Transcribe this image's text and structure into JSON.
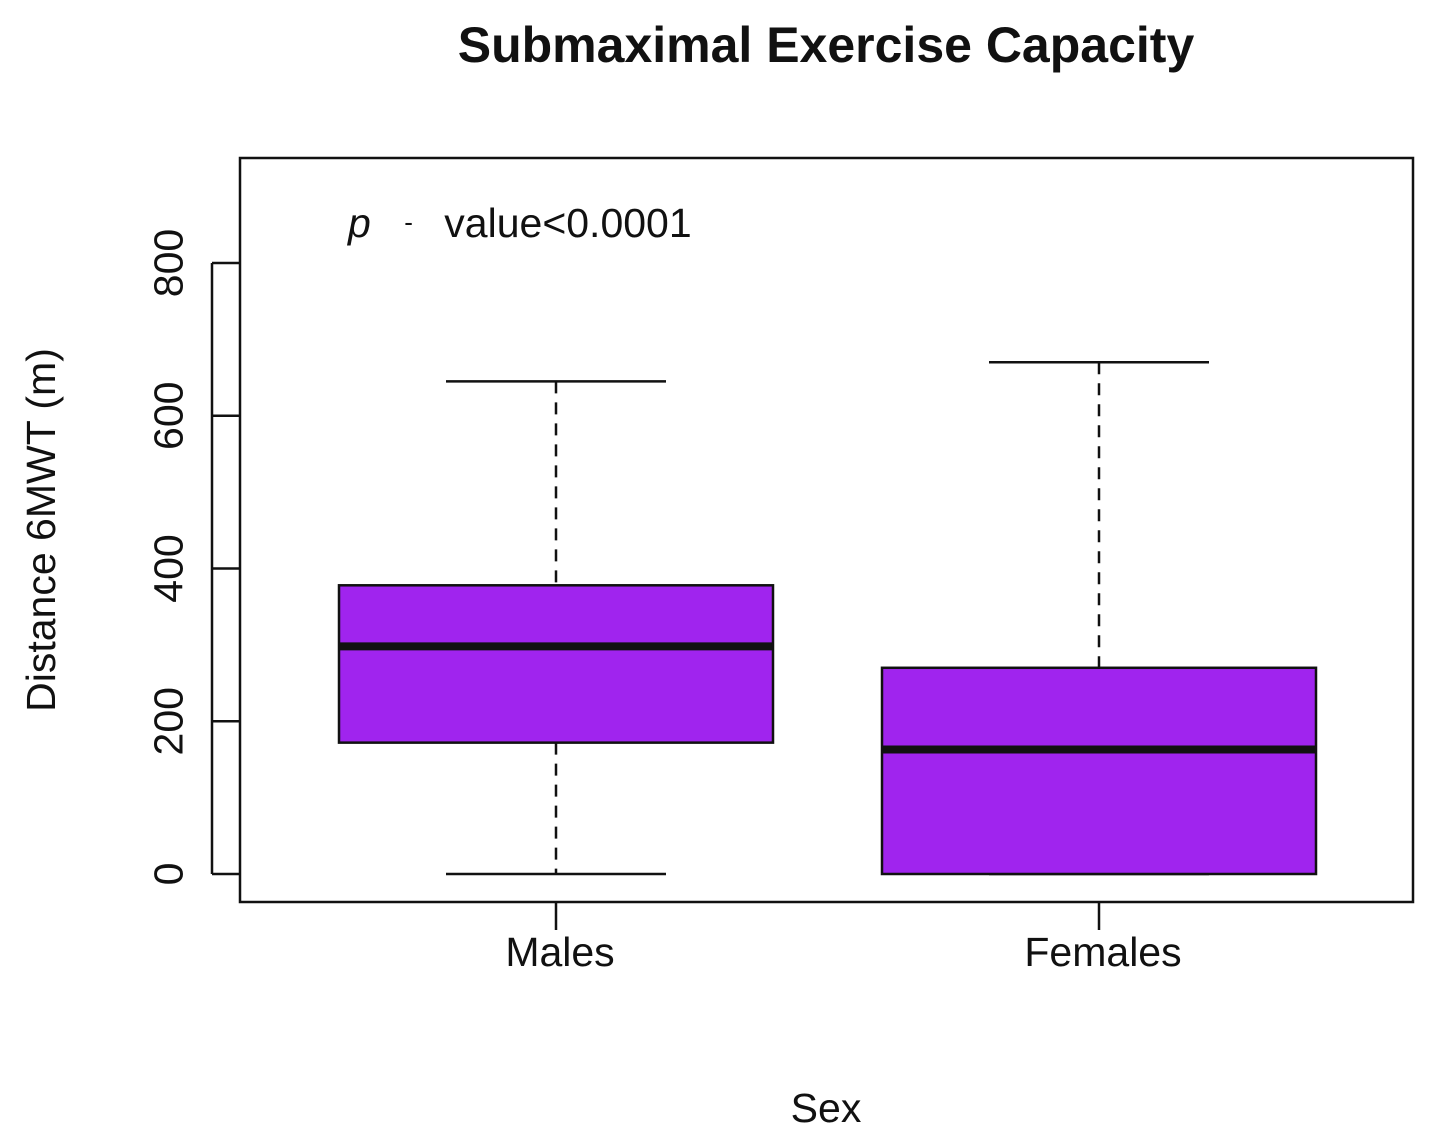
{
  "chart_data": {
    "type": "boxplot",
    "title": "Submaximal Exercise Capacity",
    "xlabel": "Sex",
    "ylabel": "Distance 6MWT (m)",
    "categories": [
      "Males",
      "Females"
    ],
    "boxes": [
      {
        "name": "Males",
        "whisker_low": 0,
        "q1": 172,
        "median": 298,
        "q3": 378,
        "whisker_high": 645
      },
      {
        "name": "Females",
        "whisker_low": 0,
        "q1": 0,
        "median": 163,
        "q3": 270,
        "whisker_high": 670
      }
    ],
    "y_ticks": [
      0,
      200,
      400,
      600,
      800
    ],
    "ylim": [
      -36,
      936
    ],
    "annotation": {
      "italic": "p",
      "dash": "-",
      "text": "value<0.0001"
    },
    "colors": {
      "box_fill": "#a024ee",
      "stroke": "#111111",
      "background": "#ffffff"
    }
  }
}
